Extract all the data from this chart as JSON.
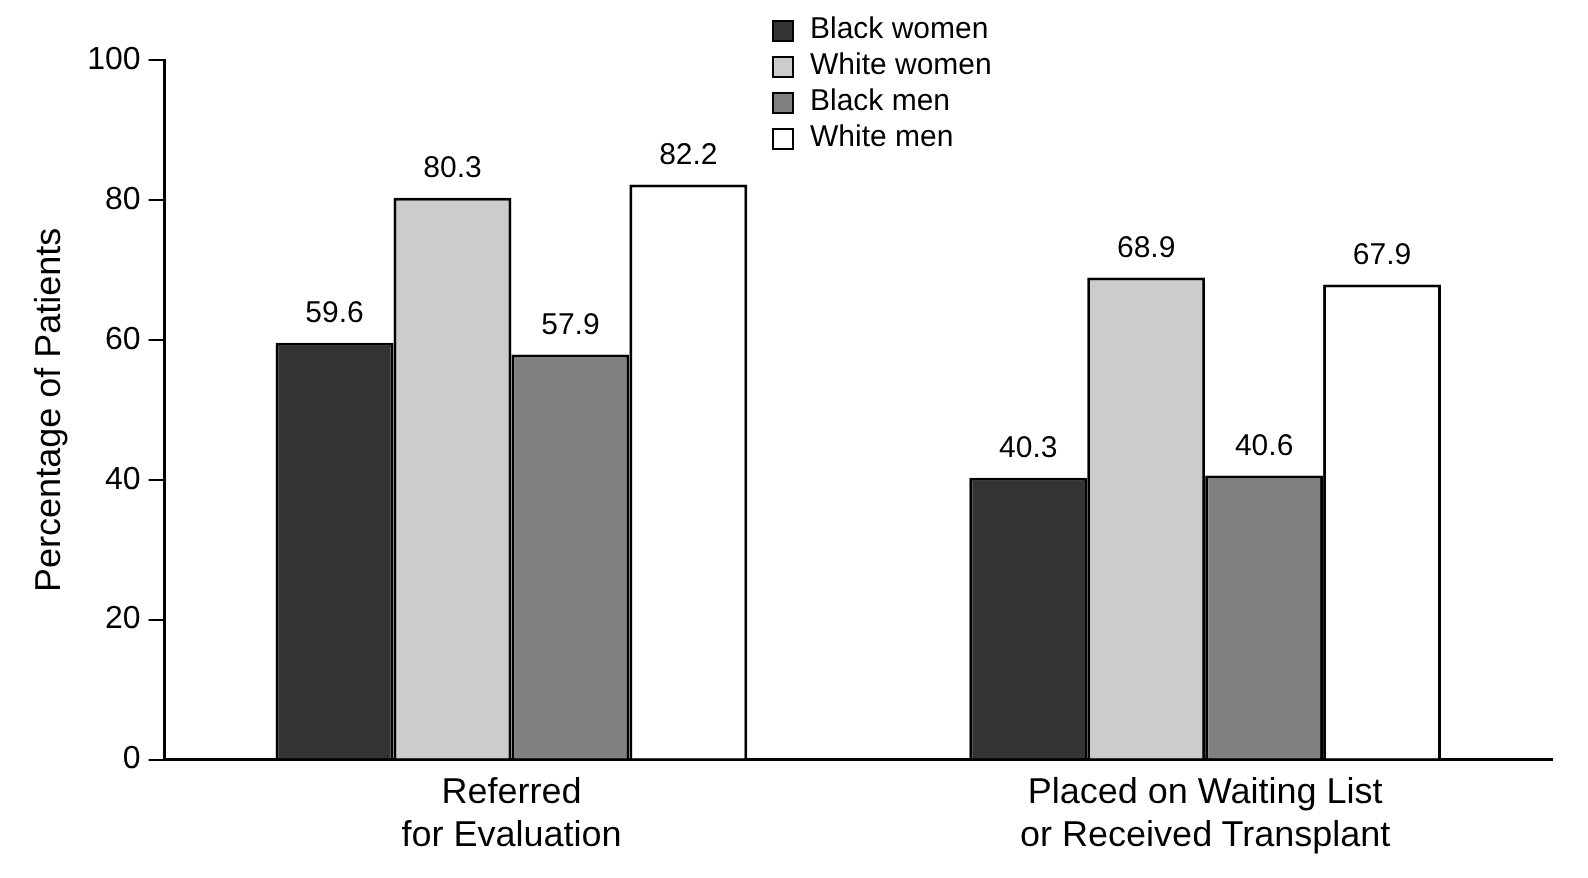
{
  "chart_data": {
    "type": "bar",
    "ylabel": "Percentage of Patients",
    "categories": [
      "Referred\nfor Evaluation",
      "Placed on Waiting List\nor Received Transplant"
    ],
    "series": [
      {
        "name": "Black women",
        "color": "#333333",
        "values": [
          59.6,
          40.3
        ]
      },
      {
        "name": "White women",
        "color": "#cccccc",
        "values": [
          80.3,
          68.9
        ]
      },
      {
        "name": "Black men",
        "color": "#808080",
        "values": [
          57.9,
          40.6
        ]
      },
      {
        "name": "White men",
        "color": "#ffffff",
        "values": [
          82.2,
          67.9
        ]
      }
    ],
    "ylim": [
      0,
      100
    ],
    "yticks": [
      0,
      20,
      40,
      60,
      80,
      100
    ],
    "grid": false,
    "legend": "top right",
    "data_labels": true
  }
}
